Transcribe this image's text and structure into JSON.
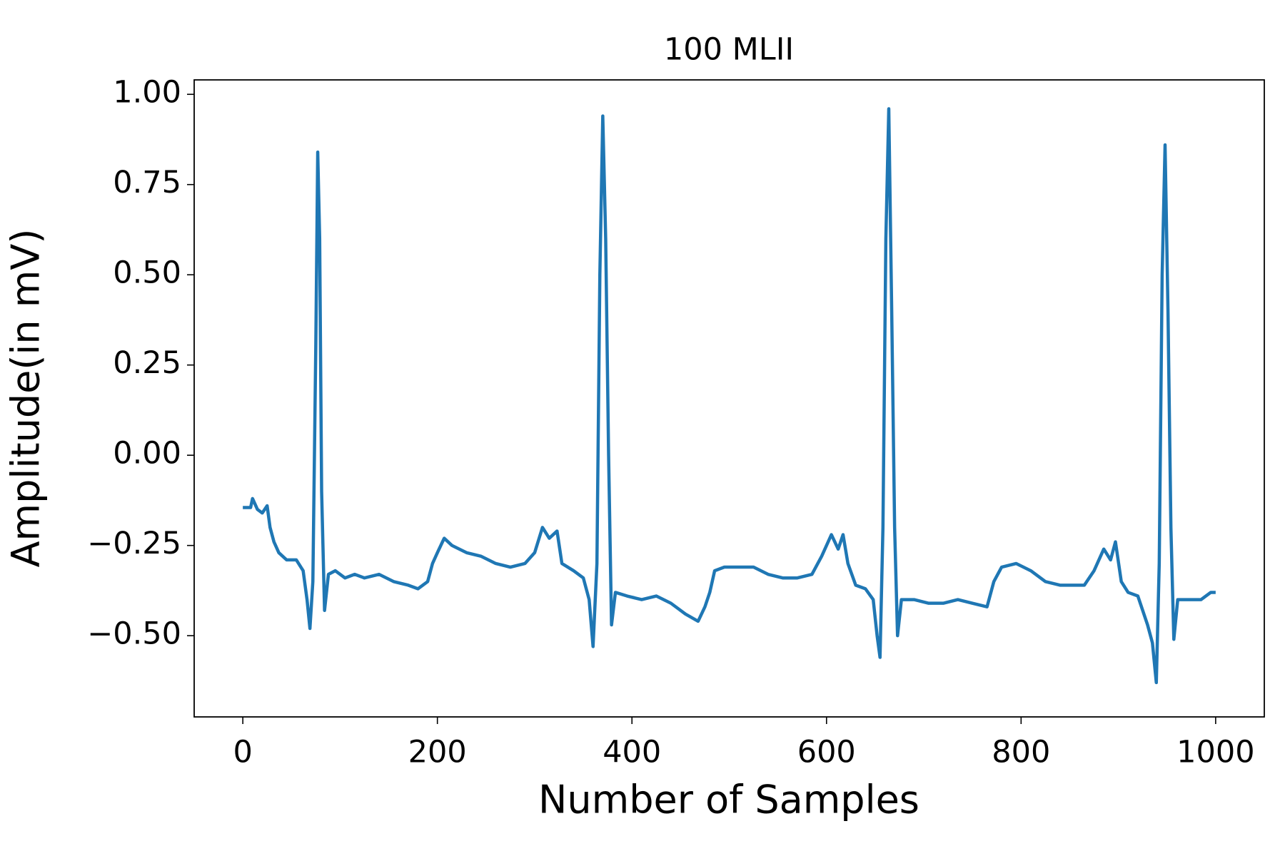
{
  "chart_data": {
    "type": "line",
    "title": "100 MLII",
    "x_label": "Number of Samples",
    "y_label": "Amplitude(in mV)",
    "xlim": [
      -50,
      1050
    ],
    "ylim": [
      -0.725,
      1.04
    ],
    "xticks": [
      0,
      200,
      400,
      600,
      800,
      1000
    ],
    "yticks": [
      {
        "value": -0.5,
        "label": "−0.50"
      },
      {
        "value": -0.25,
        "label": "−0.25"
      },
      {
        "value": 0,
        "label": "0.00"
      },
      {
        "value": 0.25,
        "label": "0.25"
      },
      {
        "value": 0.5,
        "label": "0.50"
      },
      {
        "value": 0.75,
        "label": "0.75"
      },
      {
        "value": 1,
        "label": "1.00"
      }
    ],
    "x": [
      0,
      8,
      10,
      15,
      20,
      25,
      28,
      32,
      37,
      45,
      55,
      62,
      66,
      69,
      72,
      75,
      77,
      79,
      81,
      84,
      88,
      95,
      105,
      115,
      125,
      140,
      155,
      170,
      180,
      190,
      195,
      200,
      207,
      215,
      230,
      245,
      260,
      275,
      290,
      300,
      308,
      315,
      323,
      328,
      340,
      350,
      356,
      360,
      364,
      367,
      370,
      373,
      376,
      379,
      383,
      395,
      410,
      425,
      440,
      455,
      468,
      475,
      480,
      485,
      495,
      510,
      525,
      540,
      555,
      570,
      585,
      595,
      605,
      612,
      617,
      622,
      630,
      640,
      648,
      652,
      655,
      658,
      661,
      664,
      667,
      670,
      673,
      677,
      690,
      705,
      720,
      735,
      750,
      765,
      772,
      780,
      795,
      810,
      825,
      840,
      855,
      865,
      875,
      885,
      892,
      897,
      903,
      910,
      920,
      930,
      935,
      939,
      942,
      945,
      948,
      951,
      954,
      957,
      961,
      970,
      985,
      995,
      1000
    ],
    "series": [
      {
        "name": "100 MLII",
        "color": "#1f77b4",
        "values": [
          -0.145,
          -0.145,
          -0.12,
          -0.15,
          -0.16,
          -0.14,
          -0.2,
          -0.24,
          -0.27,
          -0.29,
          -0.29,
          -0.32,
          -0.4,
          -0.48,
          -0.35,
          0.3,
          0.84,
          0.6,
          -0.1,
          -0.43,
          -0.33,
          -0.32,
          -0.34,
          -0.33,
          -0.34,
          -0.33,
          -0.35,
          -0.36,
          -0.37,
          -0.35,
          -0.3,
          -0.27,
          -0.23,
          -0.25,
          -0.27,
          -0.28,
          -0.3,
          -0.31,
          -0.3,
          -0.27,
          -0.2,
          -0.23,
          -0.21,
          -0.3,
          -0.32,
          -0.34,
          -0.4,
          -0.53,
          -0.3,
          0.5,
          0.94,
          0.6,
          0,
          -0.47,
          -0.38,
          -0.39,
          -0.4,
          -0.39,
          -0.41,
          -0.44,
          -0.46,
          -0.42,
          -0.38,
          -0.32,
          -0.31,
          -0.31,
          -0.31,
          -0.33,
          -0.34,
          -0.34,
          -0.33,
          -0.28,
          -0.22,
          -0.26,
          -0.22,
          -0.3,
          -0.36,
          -0.37,
          -0.4,
          -0.5,
          -0.56,
          -0.2,
          0.6,
          0.96,
          0.4,
          -0.2,
          -0.5,
          -0.4,
          -0.4,
          -0.41,
          -0.41,
          -0.4,
          -0.41,
          -0.42,
          -0.35,
          -0.31,
          -0.3,
          -0.32,
          -0.35,
          -0.36,
          -0.36,
          -0.36,
          -0.32,
          -0.26,
          -0.29,
          -0.24,
          -0.35,
          -0.38,
          -0.39,
          -0.47,
          -0.52,
          -0.63,
          -0.3,
          0.5,
          0.86,
          0.4,
          -0.2,
          -0.51,
          -0.4,
          -0.4,
          -0.4,
          -0.38,
          -0.38
        ]
      }
    ]
  }
}
